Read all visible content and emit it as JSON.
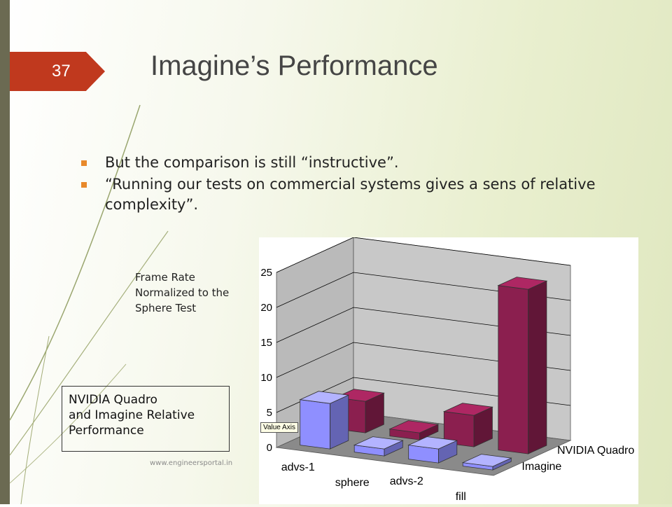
{
  "slide": {
    "number": "37",
    "title": "Imagine’s Performance",
    "bullets": [
      "But the comparison is still “instructive”.",
      "“Running our tests on commercial systems gives a sens of relative complexity”."
    ],
    "y_note": [
      "Frame Rate",
      "Normalized to the",
      "Sphere Test"
    ],
    "caption": [
      "NVIDIA Quadro",
      "and Imagine Relative",
      "Performance"
    ],
    "footer": "www.engineersportal.in",
    "tooltip": "Value Axis",
    "colors": {
      "accent_tab": "#c0391e",
      "bullet": "#e8892b",
      "left_bar": "#6b6a52"
    }
  },
  "chart_data": {
    "type": "bar",
    "style": "3d-clustered",
    "categories": [
      "advs-1",
      "sphere",
      "advs-2",
      "fill"
    ],
    "series": [
      {
        "name": "NVIDIA Quadro",
        "values": [
          4.5,
          1.0,
          4.5,
          23.5
        ],
        "color": "#8b1f4f"
      },
      {
        "name": "Imagine",
        "values": [
          6.5,
          1.0,
          2.0,
          0.5
        ],
        "color": "#8f8fff"
      }
    ],
    "y_ticks": [
      "0",
      "5",
      "10",
      "15",
      "20",
      "25"
    ],
    "ylim": [
      0,
      25
    ],
    "grid": true,
    "legend": "series labels at right end of depth axis",
    "colors": {
      "wall": "#c8c8c8",
      "floor": "#8a8a8a"
    }
  }
}
